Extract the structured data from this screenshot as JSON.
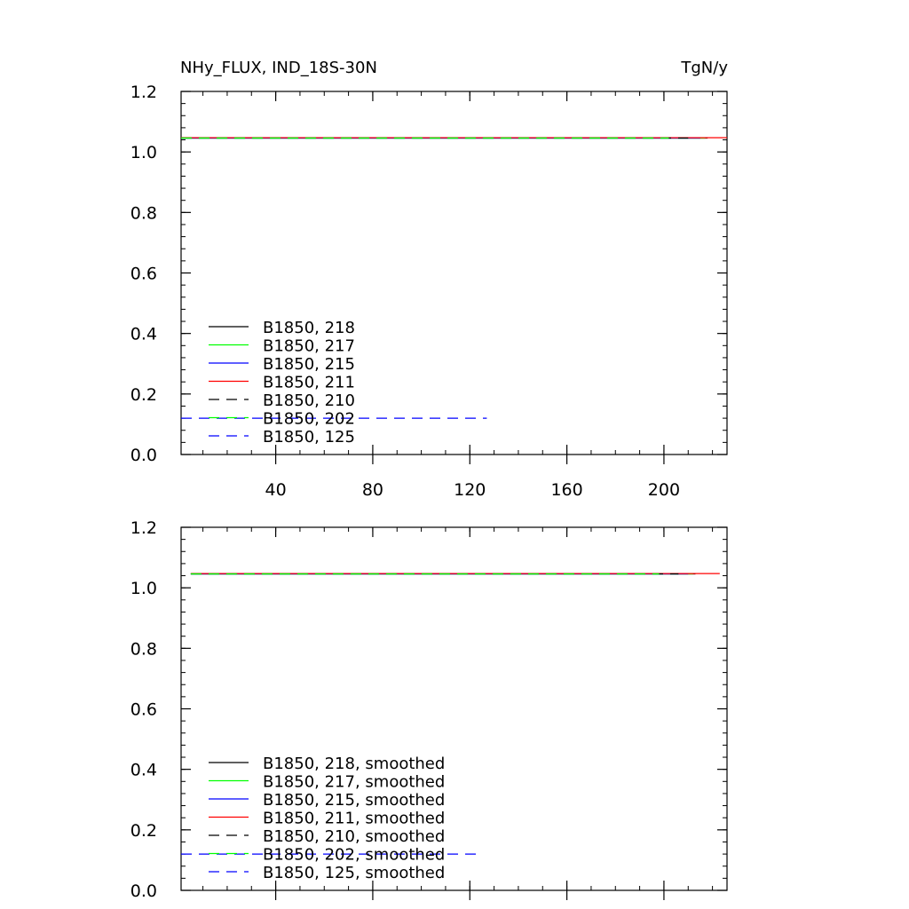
{
  "figure": {
    "title_left": "NHy_FLUX, IND_18S-30N",
    "title_right": "TgN/y"
  },
  "chart_data": [
    {
      "type": "line",
      "title": "NHy_FLUX, IND_18S-30N",
      "units_label": "TgN/y",
      "xlabel": "",
      "ylabel": "",
      "xlim": [
        1,
        226
      ],
      "ylim": [
        0.0,
        1.2
      ],
      "x_ticks": [
        40,
        80,
        120,
        160,
        200
      ],
      "x_tick_labels": [
        "40",
        "80",
        "120",
        "160",
        "200"
      ],
      "y_ticks": [
        0.0,
        0.2,
        0.4,
        0.6,
        0.8,
        1.0,
        1.2
      ],
      "y_tick_labels": [
        "0.0",
        "0.2",
        "0.4",
        "0.6",
        "0.8",
        "1.0",
        "1.2"
      ],
      "legend_position": "bottom-left",
      "series": [
        {
          "name": "B1850, 218",
          "color": "#000000",
          "dash": "solid",
          "x_range": [
            1,
            218
          ],
          "y": 1.046
        },
        {
          "name": "B1850, 217",
          "color": "#00ff00",
          "dash": "solid",
          "x_range": [
            1,
            217
          ],
          "y": 1.046
        },
        {
          "name": "B1850, 215",
          "color": "#0000ff",
          "dash": "solid",
          "x_range": [
            1,
            215
          ],
          "y": 1.046
        },
        {
          "name": "B1850, 211",
          "color": "#ff0000",
          "dash": "solid",
          "x_range": [
            1,
            226
          ],
          "y": 1.047
        },
        {
          "name": "B1850, 210",
          "color": "#000000",
          "dash": "dashed",
          "x_range": [
            1,
            210
          ],
          "y": 1.046
        },
        {
          "name": "B1850, 202",
          "color": "#00ff00",
          "dash": "dashed",
          "x_range": [
            1,
            202
          ],
          "y": 1.046
        },
        {
          "name": "B1850, 125",
          "color": "#0000ff",
          "dash": "dashed",
          "x_range": [
            1,
            127
          ],
          "y": 0.12
        }
      ]
    },
    {
      "type": "line",
      "xlabel": "",
      "ylabel": "",
      "xlim": [
        1,
        226
      ],
      "ylim": [
        0.0,
        1.2
      ],
      "x_ticks": [
        40,
        80,
        120,
        160,
        200
      ],
      "x_tick_labels": [],
      "y_ticks": [
        0.0,
        0.2,
        0.4,
        0.6,
        0.8,
        1.0,
        1.2
      ],
      "y_tick_labels": [
        "0.0",
        "0.2",
        "0.4",
        "0.6",
        "0.8",
        "1.0",
        "1.2"
      ],
      "legend_position": "bottom-left",
      "series": [
        {
          "name": "B1850, 218, smoothed",
          "color": "#000000",
          "dash": "solid",
          "x_range": [
            5,
            213
          ],
          "y": 1.046
        },
        {
          "name": "B1850, 217, smoothed",
          "color": "#00ff00",
          "dash": "solid",
          "x_range": [
            5,
            212
          ],
          "y": 1.046
        },
        {
          "name": "B1850, 215, smoothed",
          "color": "#0000ff",
          "dash": "solid",
          "x_range": [
            5,
            210
          ],
          "y": 1.046
        },
        {
          "name": "B1850, 211, smoothed",
          "color": "#ff0000",
          "dash": "solid",
          "x_range": [
            5,
            223
          ],
          "y": 1.047
        },
        {
          "name": "B1850, 210, smoothed",
          "color": "#000000",
          "dash": "dashed",
          "x_range": [
            5,
            206
          ],
          "y": 1.046
        },
        {
          "name": "B1850, 202, smoothed",
          "color": "#00ff00",
          "dash": "dashed",
          "x_range": [
            5,
            198
          ],
          "y": 1.046
        },
        {
          "name": "B1850, 125, smoothed",
          "color": "#0000ff",
          "dash": "dashed",
          "x_range": [
            1,
            123
          ],
          "y": 0.12
        }
      ]
    }
  ]
}
